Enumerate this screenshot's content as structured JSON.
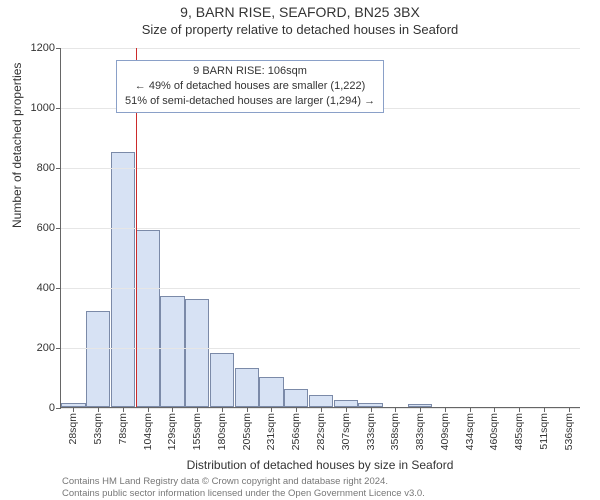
{
  "title_main": "9, BARN RISE, SEAFORD, BN25 3BX",
  "title_sub": "Size of property relative to detached houses in Seaford",
  "yaxis_label": "Number of detached properties",
  "xaxis_label": "Distribution of detached houses by size in Seaford",
  "footer_line1": "Contains HM Land Registry data © Crown copyright and database right 2024.",
  "footer_line2": "Contains public sector information licensed under the Open Government Licence v3.0.",
  "chart": {
    "type": "histogram",
    "ylim": [
      0,
      1200
    ],
    "yticks": [
      0,
      200,
      400,
      600,
      800,
      1000,
      1200
    ],
    "grid_color": "#e6e6e6",
    "bar_fill": "#d7e2f4",
    "bar_stroke": "#7b8aa8",
    "background_color": "#ffffff",
    "bars": [
      {
        "label": "28sqm",
        "value": 15
      },
      {
        "label": "53sqm",
        "value": 320
      },
      {
        "label": "78sqm",
        "value": 850
      },
      {
        "label": "104sqm",
        "value": 590
      },
      {
        "label": "129sqm",
        "value": 370
      },
      {
        "label": "155sqm",
        "value": 360
      },
      {
        "label": "180sqm",
        "value": 180
      },
      {
        "label": "205sqm",
        "value": 130
      },
      {
        "label": "231sqm",
        "value": 100
      },
      {
        "label": "256sqm",
        "value": 60
      },
      {
        "label": "282sqm",
        "value": 40
      },
      {
        "label": "307sqm",
        "value": 25
      },
      {
        "label": "333sqm",
        "value": 15
      },
      {
        "label": "358sqm",
        "value": 0
      },
      {
        "label": "383sqm",
        "value": 10
      },
      {
        "label": "409sqm",
        "value": 0
      },
      {
        "label": "434sqm",
        "value": 0
      },
      {
        "label": "460sqm",
        "value": 0
      },
      {
        "label": "485sqm",
        "value": 0
      },
      {
        "label": "511sqm",
        "value": 0
      },
      {
        "label": "536sqm",
        "value": 0
      }
    ],
    "marker_index": 3,
    "marker_color": "#cc2b2b",
    "annotation": {
      "line1": "9 BARN RISE: 106sqm",
      "line2": "← 49% of detached houses are smaller (1,222)",
      "line3": "51% of semi-detached houses are larger (1,294) →",
      "border_color": "#8aa0c8"
    }
  }
}
